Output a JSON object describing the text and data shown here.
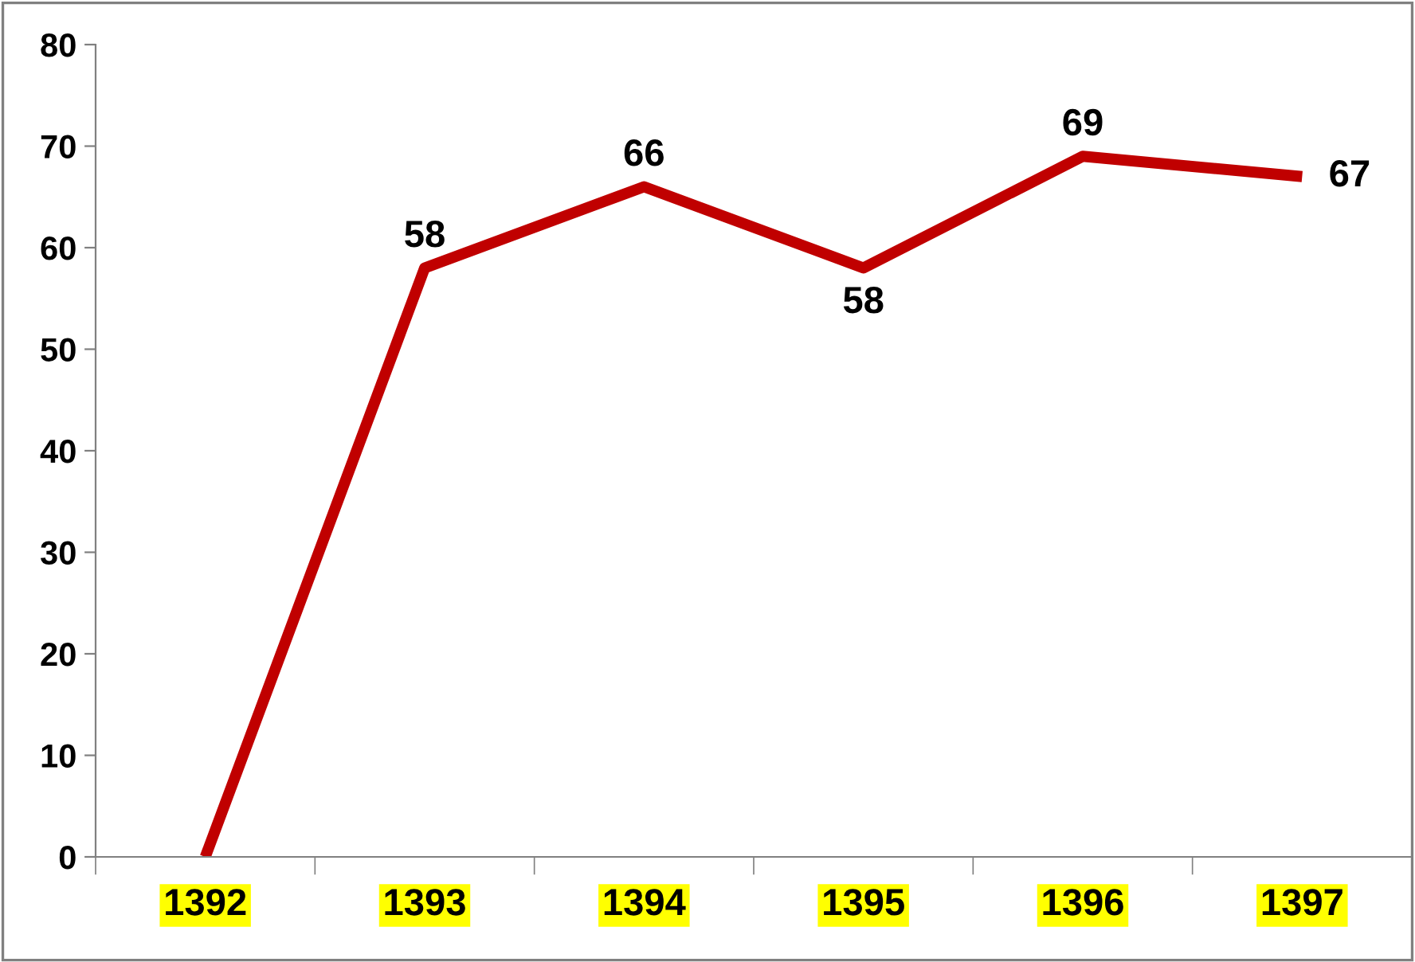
{
  "chart_data": {
    "type": "line",
    "categories": [
      "1392",
      "1393",
      "1394",
      "1395",
      "1396",
      "1397"
    ],
    "series": [
      {
        "color": "#c00000",
        "values": [
          0,
          58,
          66,
          58,
          69,
          67
        ],
        "value_labels": [
          null,
          "58",
          "66",
          "58",
          "69",
          "67"
        ]
      }
    ],
    "ylim": [
      0,
      80
    ],
    "yticks": [
      0,
      10,
      20,
      30,
      40,
      50,
      60,
      70,
      80
    ],
    "grid": false,
    "marker": "none",
    "line_style": "solid"
  }
}
